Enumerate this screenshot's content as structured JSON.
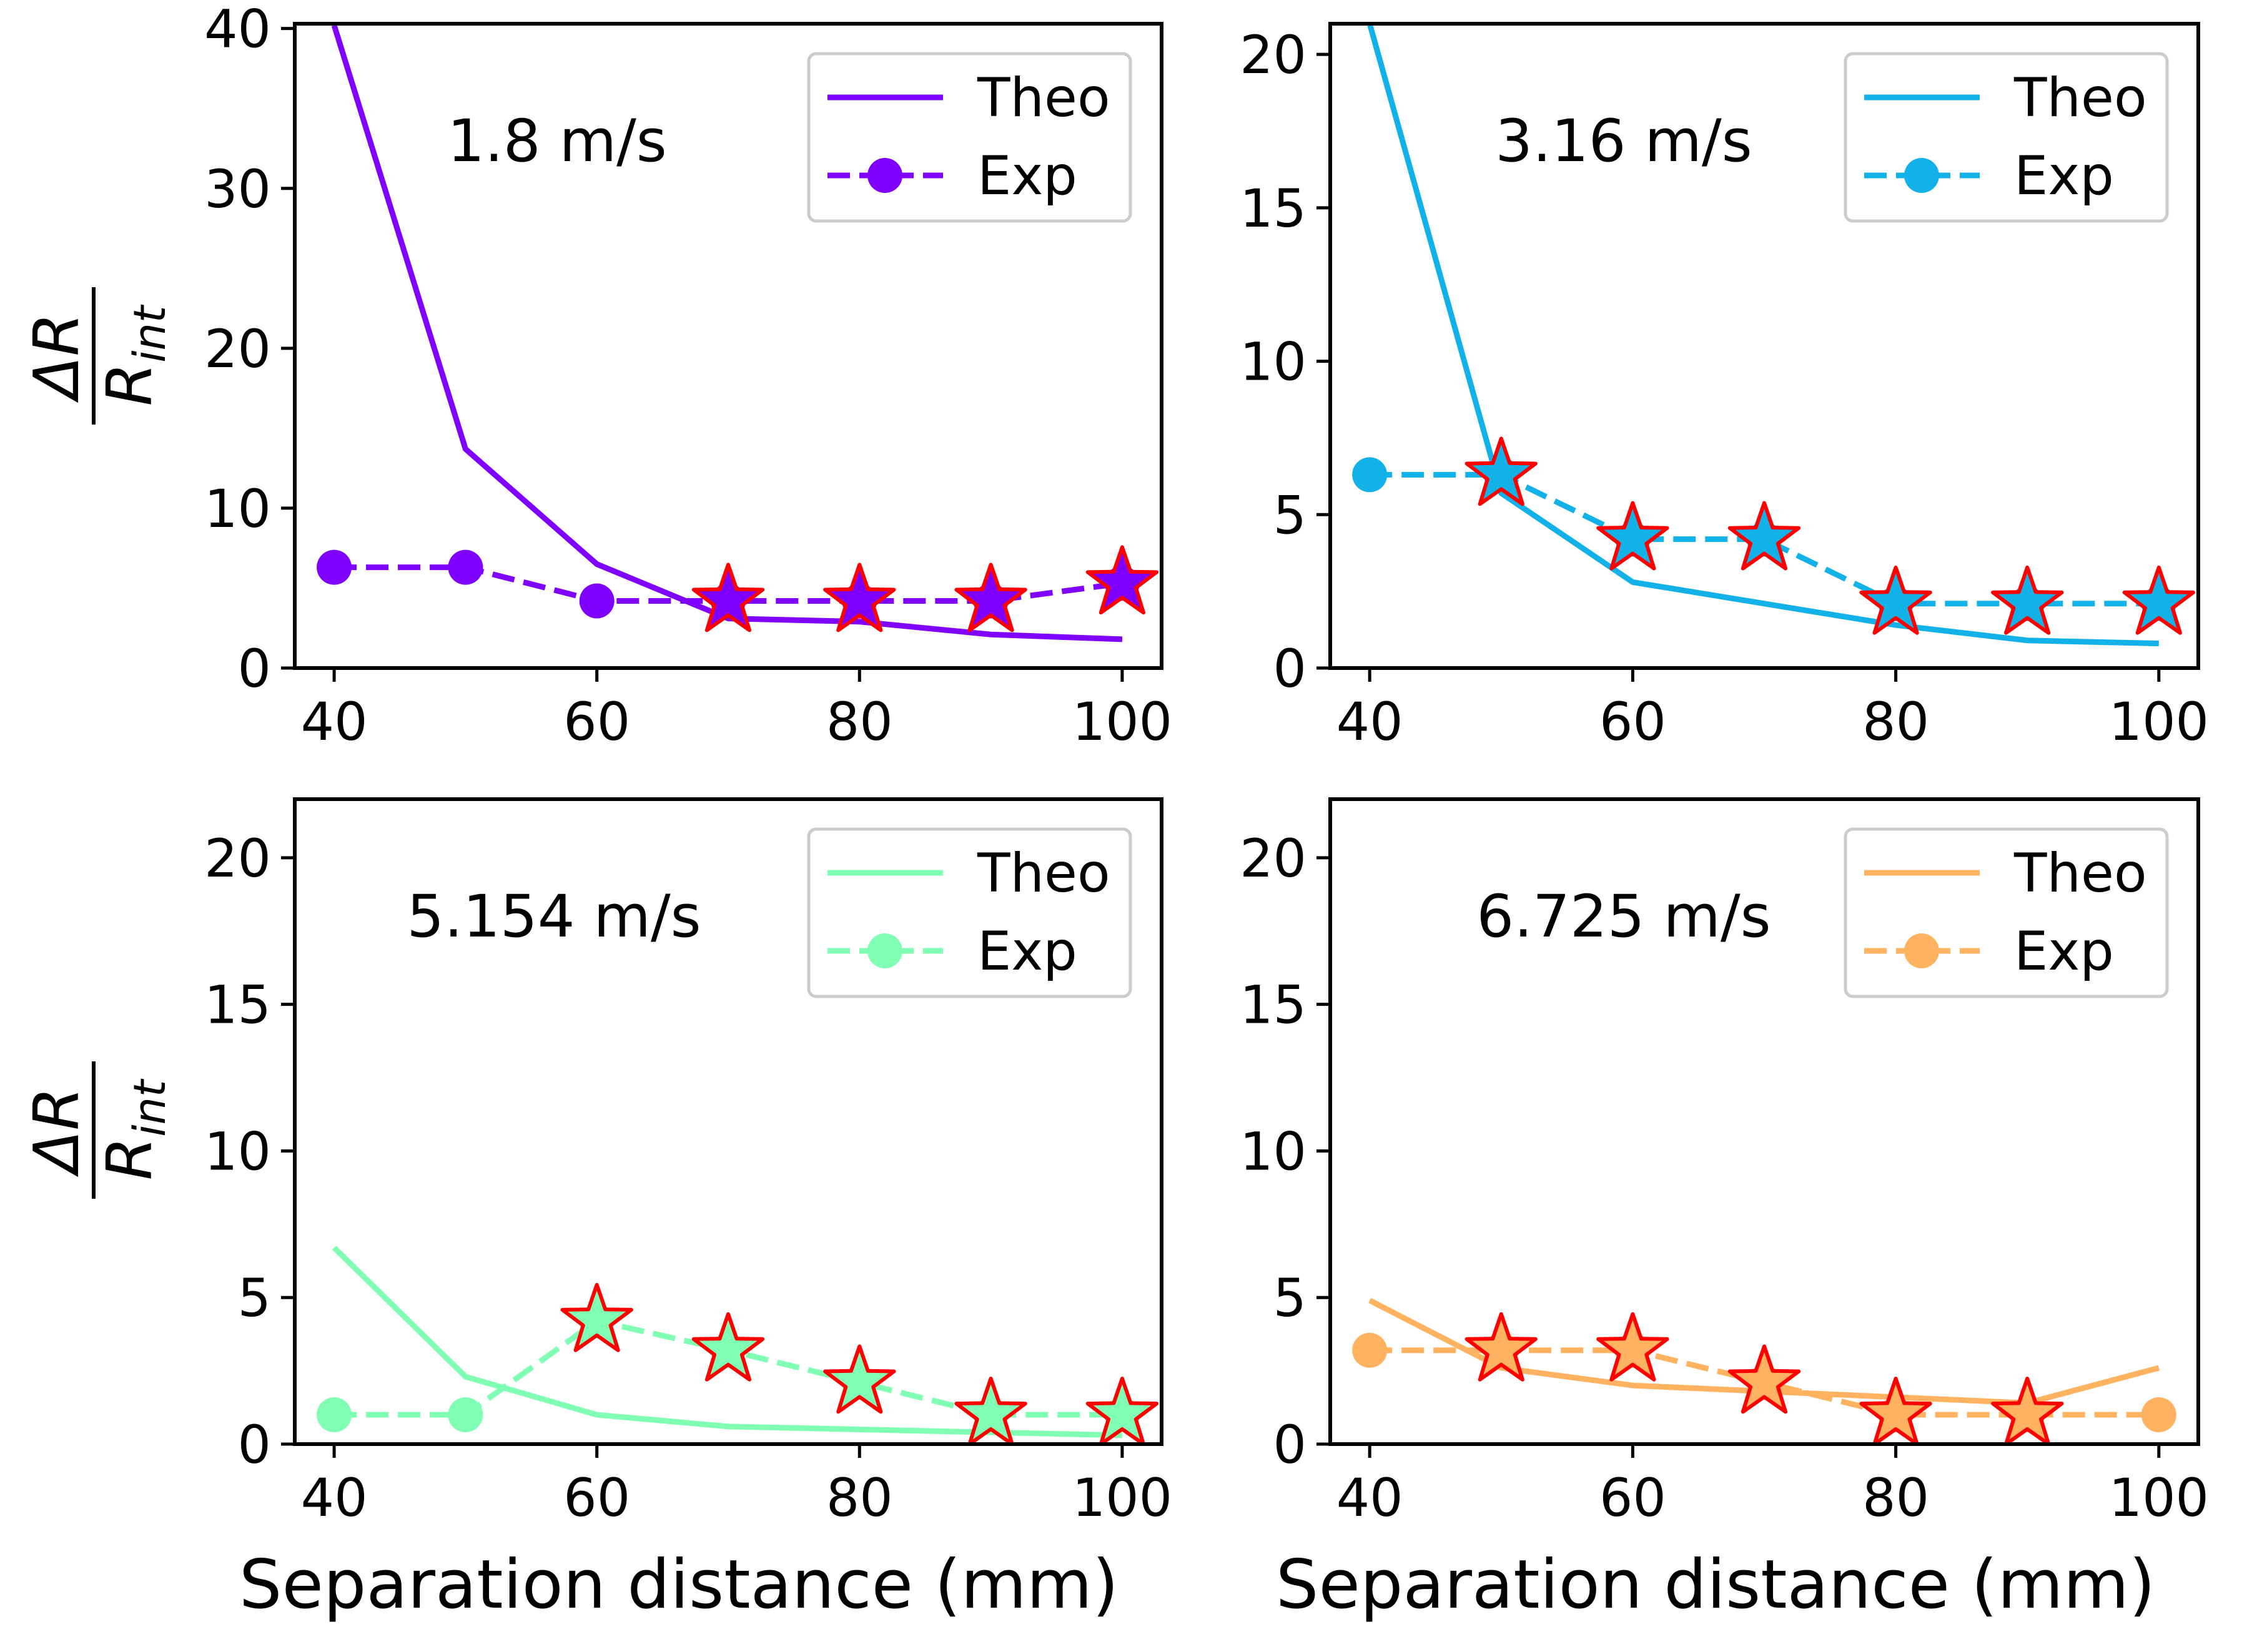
{
  "figure": {
    "ylabel_num": "ΔR",
    "ylabel_den_main": "R",
    "ylabel_den_sub": "int",
    "xlabel": "Separation distance (mm)"
  },
  "chart_data": [
    {
      "type": "line",
      "panel": "top-left",
      "annotation": "1.8 m/s",
      "color": "#7f00ff",
      "x": [
        40,
        50,
        60,
        70,
        80,
        90,
        100
      ],
      "xlim": [
        37,
        103
      ],
      "ylim": [
        0,
        40.3
      ],
      "xticks": [
        40,
        60,
        80,
        100
      ],
      "yticks": [
        0,
        10,
        20,
        30,
        40
      ],
      "xlabel": "",
      "ylabel": "ΔR/R_int",
      "legend_position": "upper right",
      "series": [
        {
          "name": "Theo",
          "style": "solid",
          "values": [
            40.2,
            13.7,
            6.5,
            3.1,
            2.9,
            2.1,
            1.8
          ]
        },
        {
          "name": "Exp",
          "style": "dashed",
          "marker": "circle",
          "values": [
            6.3,
            6.3,
            4.2,
            4.2,
            4.2,
            4.2,
            5.3
          ],
          "star_indices": [
            3,
            4,
            5,
            6
          ]
        }
      ]
    },
    {
      "type": "line",
      "panel": "top-right",
      "annotation": "3.16 m/s",
      "color": "#12b2e8",
      "x": [
        40,
        50,
        60,
        70,
        80,
        90,
        100
      ],
      "xlim": [
        37,
        103
      ],
      "ylim": [
        0,
        21
      ],
      "xticks": [
        40,
        60,
        80,
        100
      ],
      "yticks": [
        0,
        5,
        10,
        15,
        20
      ],
      "xlabel": "",
      "ylabel": "",
      "legend_position": "upper right",
      "series": [
        {
          "name": "Theo",
          "style": "solid",
          "values": [
            21.0,
            5.7,
            2.8,
            2.1,
            1.4,
            0.9,
            0.8
          ]
        },
        {
          "name": "Exp",
          "style": "dashed",
          "marker": "circle",
          "values": [
            6.3,
            6.3,
            4.2,
            4.2,
            2.1,
            2.1,
            2.1
          ],
          "star_indices": [
            1,
            2,
            3,
            4,
            5,
            6
          ]
        }
      ]
    },
    {
      "type": "line",
      "panel": "bottom-left",
      "annotation": "5.154 m/s",
      "color": "#80ffb4",
      "x": [
        40,
        50,
        60,
        70,
        80,
        90,
        100
      ],
      "xlim": [
        37,
        103
      ],
      "ylim": [
        0,
        22
      ],
      "xticks": [
        40,
        60,
        80,
        100
      ],
      "yticks": [
        0,
        5,
        10,
        15,
        20
      ],
      "xlabel": "Separation distance (mm)",
      "ylabel": "ΔR/R_int",
      "legend_position": "upper right",
      "series": [
        {
          "name": "Theo",
          "style": "solid",
          "values": [
            6.7,
            2.3,
            1.0,
            0.6,
            0.5,
            0.4,
            0.3
          ]
        },
        {
          "name": "Exp",
          "style": "dashed",
          "marker": "circle",
          "values": [
            1.0,
            1.0,
            4.2,
            3.2,
            2.1,
            1.0,
            1.0
          ],
          "star_indices": [
            2,
            3,
            4,
            5,
            6
          ]
        }
      ]
    },
    {
      "type": "line",
      "panel": "bottom-right",
      "annotation": "6.725 m/s",
      "color": "#ffb360",
      "x": [
        40,
        50,
        60,
        70,
        80,
        90,
        100
      ],
      "xlim": [
        37,
        103
      ],
      "ylim": [
        0,
        22
      ],
      "xticks": [
        40,
        60,
        80,
        100
      ],
      "yticks": [
        0,
        5,
        10,
        15,
        20
      ],
      "xlabel": "Separation distance (mm)",
      "ylabel": "",
      "legend_position": "upper right",
      "series": [
        {
          "name": "Theo",
          "style": "solid",
          "values": [
            4.9,
            2.6,
            2.0,
            1.8,
            1.6,
            1.4,
            2.6
          ]
        },
        {
          "name": "Exp",
          "style": "dashed",
          "marker": "circle",
          "values": [
            3.2,
            3.2,
            3.2,
            2.1,
            1.0,
            1.0,
            1.0
          ],
          "star_indices": [
            1,
            2,
            3,
            4,
            5
          ]
        }
      ]
    }
  ]
}
